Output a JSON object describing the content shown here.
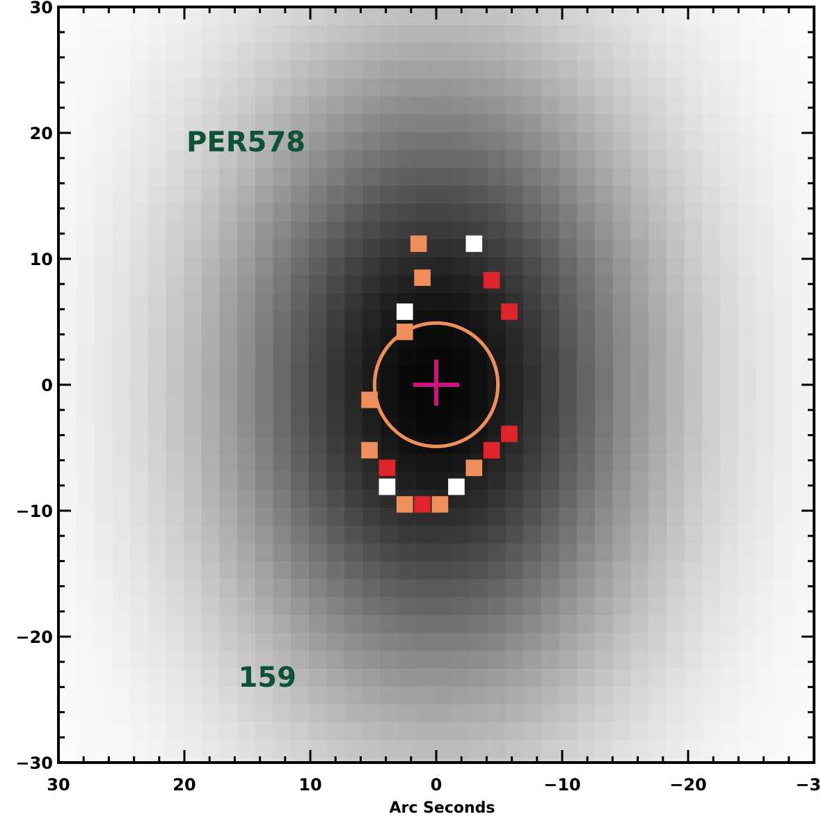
{
  "chart_data": {
    "type": "heatmap",
    "title": "",
    "xlabel": "Arc Seconds",
    "ylabel": "",
    "xlim": [
      30,
      -30
    ],
    "ylim": [
      -30,
      30
    ],
    "x_ticks": [
      30,
      20,
      10,
      0,
      -10,
      -20,
      -30
    ],
    "x_tick_labels": [
      "30",
      "20",
      "10",
      "0",
      "−10",
      "−20",
      "−30"
    ],
    "y_ticks": [
      30,
      20,
      10,
      0,
      -10,
      -20,
      -30
    ],
    "y_tick_labels": [
      "30",
      "20",
      "10",
      "0",
      "−10",
      "−20",
      "−30"
    ],
    "annotations": {
      "object_name": {
        "text": "PER578",
        "x": 19.5,
        "y": 19.3
      },
      "object_number": {
        "text": "159",
        "x": 15.5,
        "y": -23.2
      }
    },
    "image": {
      "description_levels": "grayscale intensity, darkest at center",
      "center": [
        0,
        0
      ],
      "pixel_size_arcsec": 1.42,
      "peak_darkness": 1.0,
      "sigma_x_arcsec": 10.5,
      "sigma_y_arcsec": 15.5
    },
    "aperture_circle": {
      "center": [
        0,
        0
      ],
      "radius_arcsec": 4.9,
      "color": "#ef8f5c"
    },
    "center_marker": {
      "x": 0,
      "y": 0,
      "color": "#d0127c"
    },
    "marked_pixels": [
      {
        "x": 1.4,
        "y": 11.2,
        "color": "#ef8f5c"
      },
      {
        "x": -3.0,
        "y": 11.2,
        "color": "#ffffff"
      },
      {
        "x": 1.1,
        "y": 8.5,
        "color": "#ef8f5c"
      },
      {
        "x": -4.4,
        "y": 8.3,
        "color": "#e0242b"
      },
      {
        "x": 2.5,
        "y": 5.8,
        "color": "#ffffff"
      },
      {
        "x": 2.5,
        "y": 4.2,
        "color": "#ef8f5c"
      },
      {
        "x": -5.8,
        "y": 5.8,
        "color": "#e0242b"
      },
      {
        "x": 5.3,
        "y": -1.2,
        "color": "#ef8f5c"
      },
      {
        "x": -5.8,
        "y": -3.9,
        "color": "#e0242b"
      },
      {
        "x": 5.3,
        "y": -5.2,
        "color": "#ef8f5c"
      },
      {
        "x": -4.4,
        "y": -5.2,
        "color": "#e0242b"
      },
      {
        "x": 3.9,
        "y": -6.6,
        "color": "#e0242b"
      },
      {
        "x": -3.0,
        "y": -6.6,
        "color": "#ef8f5c"
      },
      {
        "x": 3.9,
        "y": -8.1,
        "color": "#ffffff"
      },
      {
        "x": -1.6,
        "y": -8.1,
        "color": "#ffffff"
      },
      {
        "x": 2.5,
        "y": -9.5,
        "color": "#ef8f5c"
      },
      {
        "x": 1.1,
        "y": -9.5,
        "color": "#e0242b"
      },
      {
        "x": -0.3,
        "y": -9.5,
        "color": "#ef8f5c"
      }
    ]
  }
}
